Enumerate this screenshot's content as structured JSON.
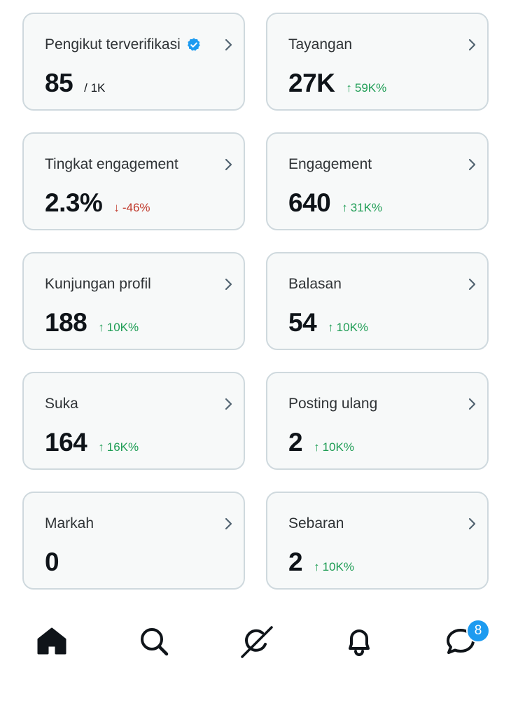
{
  "cards": [
    {
      "title": "Pengikut terverifikasi",
      "value": "85",
      "sub": "/ 1K",
      "delta": "",
      "direction": ""
    },
    {
      "title": "Tayangan",
      "value": "27K",
      "sub": "",
      "delta": "59K%",
      "direction": "up"
    },
    {
      "title": "Tingkat engagement",
      "value": "2.3%",
      "sub": "",
      "delta": "-46%",
      "direction": "down"
    },
    {
      "title": "Engagement",
      "value": "640",
      "sub": "",
      "delta": "31K%",
      "direction": "up"
    },
    {
      "title": "Kunjungan profil",
      "value": "188",
      "sub": "",
      "delta": "10K%",
      "direction": "up"
    },
    {
      "title": "Balasan",
      "value": "54",
      "sub": "",
      "delta": "10K%",
      "direction": "up"
    },
    {
      "title": "Suka",
      "value": "164",
      "sub": "",
      "delta": "16K%",
      "direction": "up"
    },
    {
      "title": "Posting ulang",
      "value": "2",
      "sub": "",
      "delta": "10K%",
      "direction": "up"
    },
    {
      "title": "Markah",
      "value": "0",
      "sub": "",
      "delta": "",
      "direction": ""
    },
    {
      "title": "Sebaran",
      "value": "2",
      "sub": "",
      "delta": "10K%",
      "direction": "up"
    }
  ],
  "icons": {
    "verified": "verified-badge-icon",
    "chevron": "chevron-right-icon",
    "up": "arrow-up-icon",
    "down": "arrow-down-icon"
  },
  "arrows": {
    "up": "↑",
    "down": "↓"
  },
  "colors": {
    "up": "#1f9d55",
    "down": "#c0392b",
    "accent": "#1d9bf0",
    "card_bg": "#f7f9f9",
    "card_border": "#cfd9de"
  },
  "nav": {
    "items": [
      "home-icon",
      "search-icon",
      "grok-icon",
      "notifications-icon",
      "messages-icon"
    ],
    "messages_badge": "8"
  }
}
